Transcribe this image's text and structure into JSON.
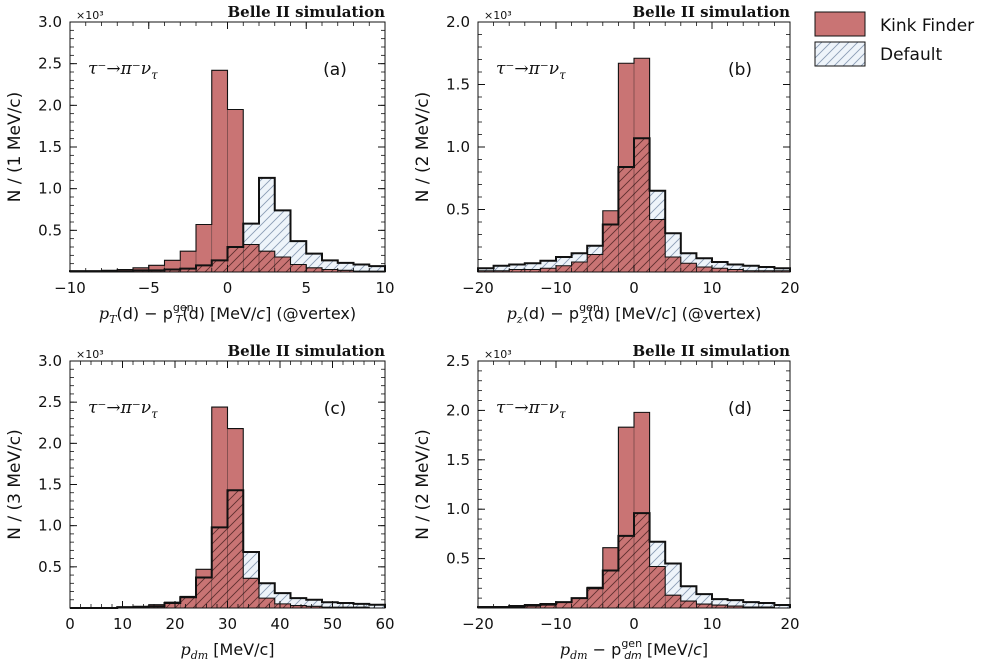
{
  "legend": {
    "kink_label": "Kink Finder",
    "default_label": "Default"
  },
  "colors": {
    "kink_fill": "#c97474",
    "default_fill": "#eef4fa",
    "edge": "#111111",
    "hatch": "#8a9cb4"
  },
  "chart_data": [
    {
      "type": "bar",
      "panel": "(a)",
      "title": "Belle II simulation",
      "process": "τ⁻→π⁻ν",
      "process_sub": "τ",
      "multiplier": "×10³",
      "ylabel": "N / (1 MeV/c)",
      "xlabel": "p_T(d) − p_T^gen(d) [MeV/c] (@vertex)",
      "xlabel_parts": {
        "a": "p",
        "a_sub": "T",
        "b": "(d) − p",
        "b_sub": "T",
        "b_sup": "gen",
        "c": "(d) [MeV/",
        "c_it": "c",
        "d": "] (@vertex)"
      },
      "xlim": [
        -10,
        10
      ],
      "ylim": [
        0,
        3.0
      ],
      "xticks": [
        -10,
        -5,
        0,
        5,
        10
      ],
      "xtick_labels": [
        "−10",
        "−5",
        "0",
        "5",
        "10"
      ],
      "yticks": [
        0.5,
        1.0,
        1.5,
        2.0,
        2.5,
        3.0
      ],
      "ytick_labels": [
        "0.5",
        "1.0",
        "1.5",
        "2.0",
        "2.5",
        "3.0"
      ],
      "bin_edges": [
        -10,
        -9,
        -8,
        -7,
        -6,
        -5,
        -4,
        -3,
        -2,
        -1,
        0,
        1,
        2,
        3,
        4,
        5,
        6,
        7,
        8,
        9,
        10
      ],
      "series": [
        {
          "name": "Kink Finder",
          "values": [
            0.01,
            0.01,
            0.02,
            0.03,
            0.05,
            0.08,
            0.14,
            0.25,
            0.57,
            2.42,
            1.95,
            0.33,
            0.25,
            0.18,
            0.09,
            0.05,
            0.03,
            0.02,
            0.01,
            0.01
          ]
        },
        {
          "name": "Default",
          "values": [
            0.01,
            0.01,
            0.01,
            0.01,
            0.02,
            0.02,
            0.03,
            0.04,
            0.08,
            0.14,
            0.3,
            0.58,
            1.13,
            0.74,
            0.37,
            0.22,
            0.14,
            0.11,
            0.09,
            0.07
          ]
        }
      ]
    },
    {
      "type": "bar",
      "panel": "(b)",
      "title": "Belle II simulation",
      "process": "τ⁻→π⁻ν",
      "process_sub": "τ",
      "multiplier": "×10³",
      "ylabel": "N / (2 MeV/c)",
      "xlabel": "p_z(d) − p_z^gen(d) [MeV/c] (@vertex)",
      "xlabel_parts": {
        "a": "p",
        "a_sub": "z",
        "b": "(d) − p",
        "b_sub": "z",
        "b_sup": "gen",
        "c": "(d) [MeV/",
        "c_it": "c",
        "d": "] (@vertex)"
      },
      "xlim": [
        -20,
        20
      ],
      "ylim": [
        0,
        2.0
      ],
      "xticks": [
        -20,
        -10,
        0,
        10,
        20
      ],
      "xtick_labels": [
        "−20",
        "−10",
        "0",
        "10",
        "20"
      ],
      "yticks": [
        0.5,
        1.0,
        1.5,
        2.0
      ],
      "ytick_labels": [
        "0.5",
        "1.0",
        "1.5",
        "2.0"
      ],
      "bin_edges": [
        -20,
        -18,
        -16,
        -14,
        -12,
        -10,
        -8,
        -6,
        -4,
        -2,
        0,
        2,
        4,
        6,
        8,
        10,
        12,
        14,
        16,
        18,
        20
      ],
      "series": [
        {
          "name": "Kink Finder",
          "values": [
            0.01,
            0.01,
            0.02,
            0.02,
            0.03,
            0.05,
            0.08,
            0.14,
            0.49,
            1.67,
            1.71,
            0.42,
            0.12,
            0.07,
            0.04,
            0.03,
            0.02,
            0.01,
            0.01,
            0.01
          ]
        },
        {
          "name": "Default",
          "values": [
            0.03,
            0.05,
            0.06,
            0.07,
            0.09,
            0.12,
            0.15,
            0.21,
            0.38,
            0.84,
            1.07,
            0.65,
            0.31,
            0.15,
            0.11,
            0.08,
            0.06,
            0.05,
            0.04,
            0.03
          ]
        }
      ]
    },
    {
      "type": "bar",
      "panel": "(c)",
      "title": "Belle II simulation",
      "process": "τ⁻→π⁻ν",
      "process_sub": "τ",
      "multiplier": "×10³",
      "ylabel": "N / (3 MeV/c)",
      "xlabel": "p_dm [MeV/c]",
      "xlabel_parts": {
        "a": "p",
        "a_sub": "dm",
        "b": "",
        "b_sub": "",
        "b_sup": "",
        "c": " [MeV/c]",
        "c_it": "",
        "d": ""
      },
      "xlim": [
        0,
        60
      ],
      "ylim": [
        0,
        3.0
      ],
      "xticks": [
        0,
        10,
        20,
        30,
        40,
        50,
        60
      ],
      "xtick_labels": [
        "0",
        "10",
        "20",
        "30",
        "40",
        "50",
        "60"
      ],
      "yticks": [
        0.5,
        1.0,
        1.5,
        2.0,
        2.5,
        3.0
      ],
      "ytick_labels": [
        "0.5",
        "1.0",
        "1.5",
        "2.0",
        "2.5",
        "3.0"
      ],
      "bin_edges": [
        0,
        3,
        6,
        9,
        12,
        15,
        18,
        21,
        24,
        27,
        30,
        33,
        36,
        39,
        42,
        45,
        48,
        51,
        54,
        57,
        60
      ],
      "series": [
        {
          "name": "Kink Finder",
          "values": [
            0.0,
            0.0,
            0.0,
            0.01,
            0.02,
            0.04,
            0.07,
            0.14,
            0.47,
            2.44,
            2.18,
            0.36,
            0.12,
            0.05,
            0.03,
            0.02,
            0.01,
            0.01,
            0.01,
            0.0
          ]
        },
        {
          "name": "Default",
          "values": [
            0.0,
            0.0,
            0.0,
            0.01,
            0.01,
            0.02,
            0.06,
            0.13,
            0.37,
            0.98,
            1.43,
            0.68,
            0.3,
            0.18,
            0.12,
            0.1,
            0.07,
            0.06,
            0.05,
            0.04
          ]
        }
      ]
    },
    {
      "type": "bar",
      "panel": "(d)",
      "title": "Belle II simulation",
      "process": "τ⁻→π⁻ν",
      "process_sub": "τ",
      "multiplier": "×10³",
      "ylabel": "N / (2 MeV/c)",
      "xlabel": "p_dm − p_dm^gen [MeV/c]",
      "xlabel_parts": {
        "a": "p",
        "a_sub": "dm",
        "b": " − p",
        "b_sub": "dm",
        "b_sup": "gen",
        "c": " [MeV/",
        "c_it": "c",
        "d": "]"
      },
      "xlim": [
        -20,
        20
      ],
      "ylim": [
        0,
        2.5
      ],
      "xticks": [
        -20,
        -10,
        0,
        10,
        20
      ],
      "xtick_labels": [
        "−20",
        "−10",
        "0",
        "10",
        "20"
      ],
      "yticks": [
        0.5,
        1.0,
        1.5,
        2.0,
        2.5
      ],
      "ytick_labels": [
        "0.5",
        "1.0",
        "1.5",
        "2.0",
        "2.5"
      ],
      "bin_edges": [
        -20,
        -18,
        -16,
        -14,
        -12,
        -10,
        -8,
        -6,
        -4,
        -2,
        0,
        2,
        4,
        6,
        8,
        10,
        12,
        14,
        16,
        18,
        20
      ],
      "series": [
        {
          "name": "Kink Finder",
          "values": [
            0.0,
            0.01,
            0.01,
            0.02,
            0.03,
            0.06,
            0.1,
            0.21,
            0.61,
            1.83,
            1.98,
            0.42,
            0.13,
            0.07,
            0.04,
            0.03,
            0.02,
            0.01,
            0.01,
            0.0
          ]
        },
        {
          "name": "Default",
          "values": [
            0.01,
            0.01,
            0.02,
            0.03,
            0.04,
            0.06,
            0.1,
            0.2,
            0.38,
            0.73,
            0.96,
            0.67,
            0.45,
            0.22,
            0.14,
            0.09,
            0.08,
            0.06,
            0.05,
            0.03
          ]
        }
      ]
    }
  ]
}
